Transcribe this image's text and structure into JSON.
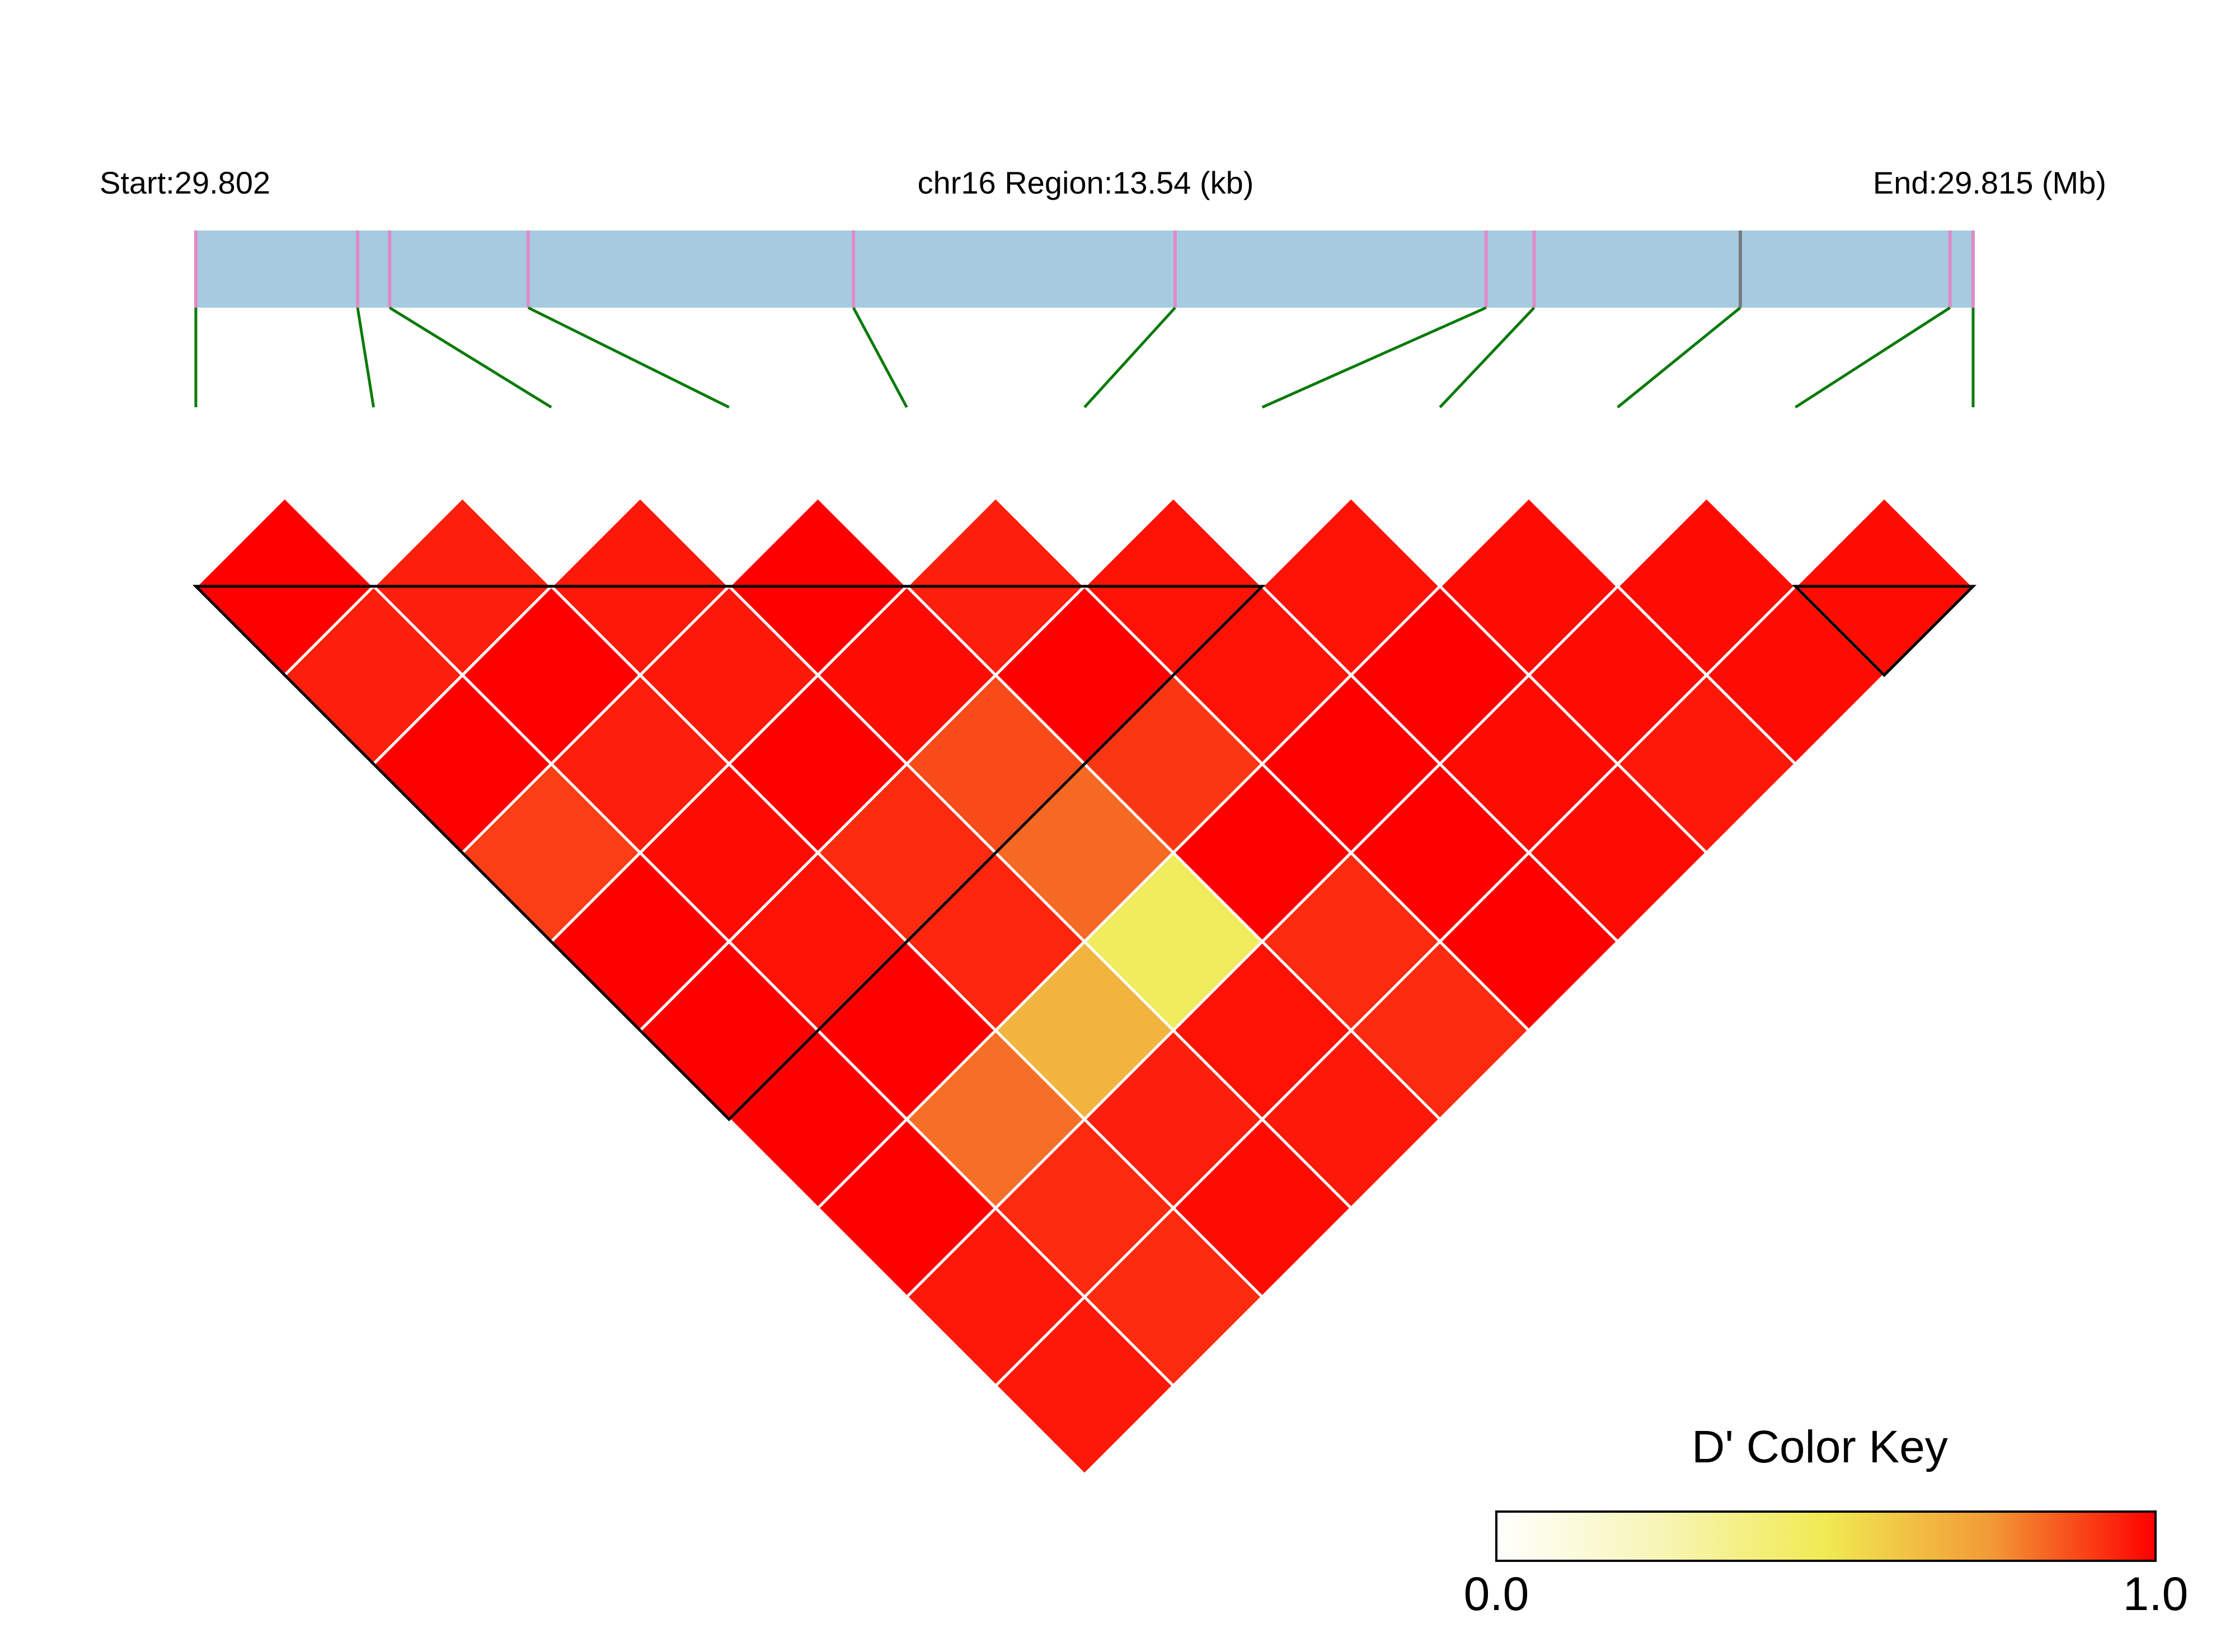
{
  "chart_data": {
    "type": "heatmap",
    "subtype": "linkage-disequilibrium-triangle",
    "header": {
      "start_label": "Start:29.802",
      "region_label": "chr16 Region:13.54 (kb)",
      "end_label": "End:29.815 (Mb)"
    },
    "region": {
      "chromosome": "chr16",
      "start_mb": 29.802,
      "end_mb": 29.815,
      "length_kb": 13.54
    },
    "snp_positions_fraction": [
      0.0,
      0.091,
      0.109,
      0.187,
      0.37,
      0.551,
      0.726,
      0.753,
      0.869,
      0.987,
      1.0
    ],
    "snp_marker_colors": [
      "#e08ac8",
      "#e08ac8",
      "#e08ac8",
      "#e08ac8",
      "#e08ac8",
      "#e08ac8",
      "#e08ac8",
      "#e08ac8",
      "#7a7a7a",
      "#e08ac8",
      "#e08ac8"
    ],
    "ld_dprime_matrix": [
      [
        1.0,
        0.95,
        0.96,
        1.0,
        0.95,
        0.97,
        0.97,
        0.98,
        0.98,
        0.98
      ],
      [
        0.95,
        1.0,
        0.96,
        0.98,
        1.0,
        0.97,
        1.0,
        0.98,
        0.98
      ],
      [
        1.0,
        0.95,
        1.0,
        0.88,
        0.91,
        1.0,
        0.98,
        0.96
      ],
      [
        0.9,
        0.98,
        0.93,
        0.83,
        1.0,
        1.0,
        0.98
      ],
      [
        1.0,
        0.97,
        0.94,
        0.47,
        0.93,
        1.0
      ],
      [
        1.0,
        1.0,
        0.67,
        0.97,
        0.93
      ],
      [
        1.0,
        0.82,
        0.95,
        0.96
      ],
      [
        1.0,
        0.93,
        0.98
      ],
      [
        0.96,
        0.93
      ],
      [
        0.96
      ]
    ],
    "haplotype_blocks": [
      {
        "first_snp": 1,
        "last_snp": 7
      },
      {
        "first_snp": 10,
        "last_snp": 11
      }
    ],
    "colors": {
      "region_bar": "#a6cbe0",
      "connector_line": "#0a7a0a",
      "cell_border": "#ffffff",
      "block_outline": "#000000"
    },
    "color_key": {
      "title": "D' Color Key",
      "min_label": "0.0",
      "max_label": "1.0",
      "min": 0.0,
      "max": 1.0,
      "stops": [
        "#ffffff",
        "#f7f5b6",
        "#f0ea52",
        "#f29a36",
        "#ff0000"
      ]
    }
  }
}
